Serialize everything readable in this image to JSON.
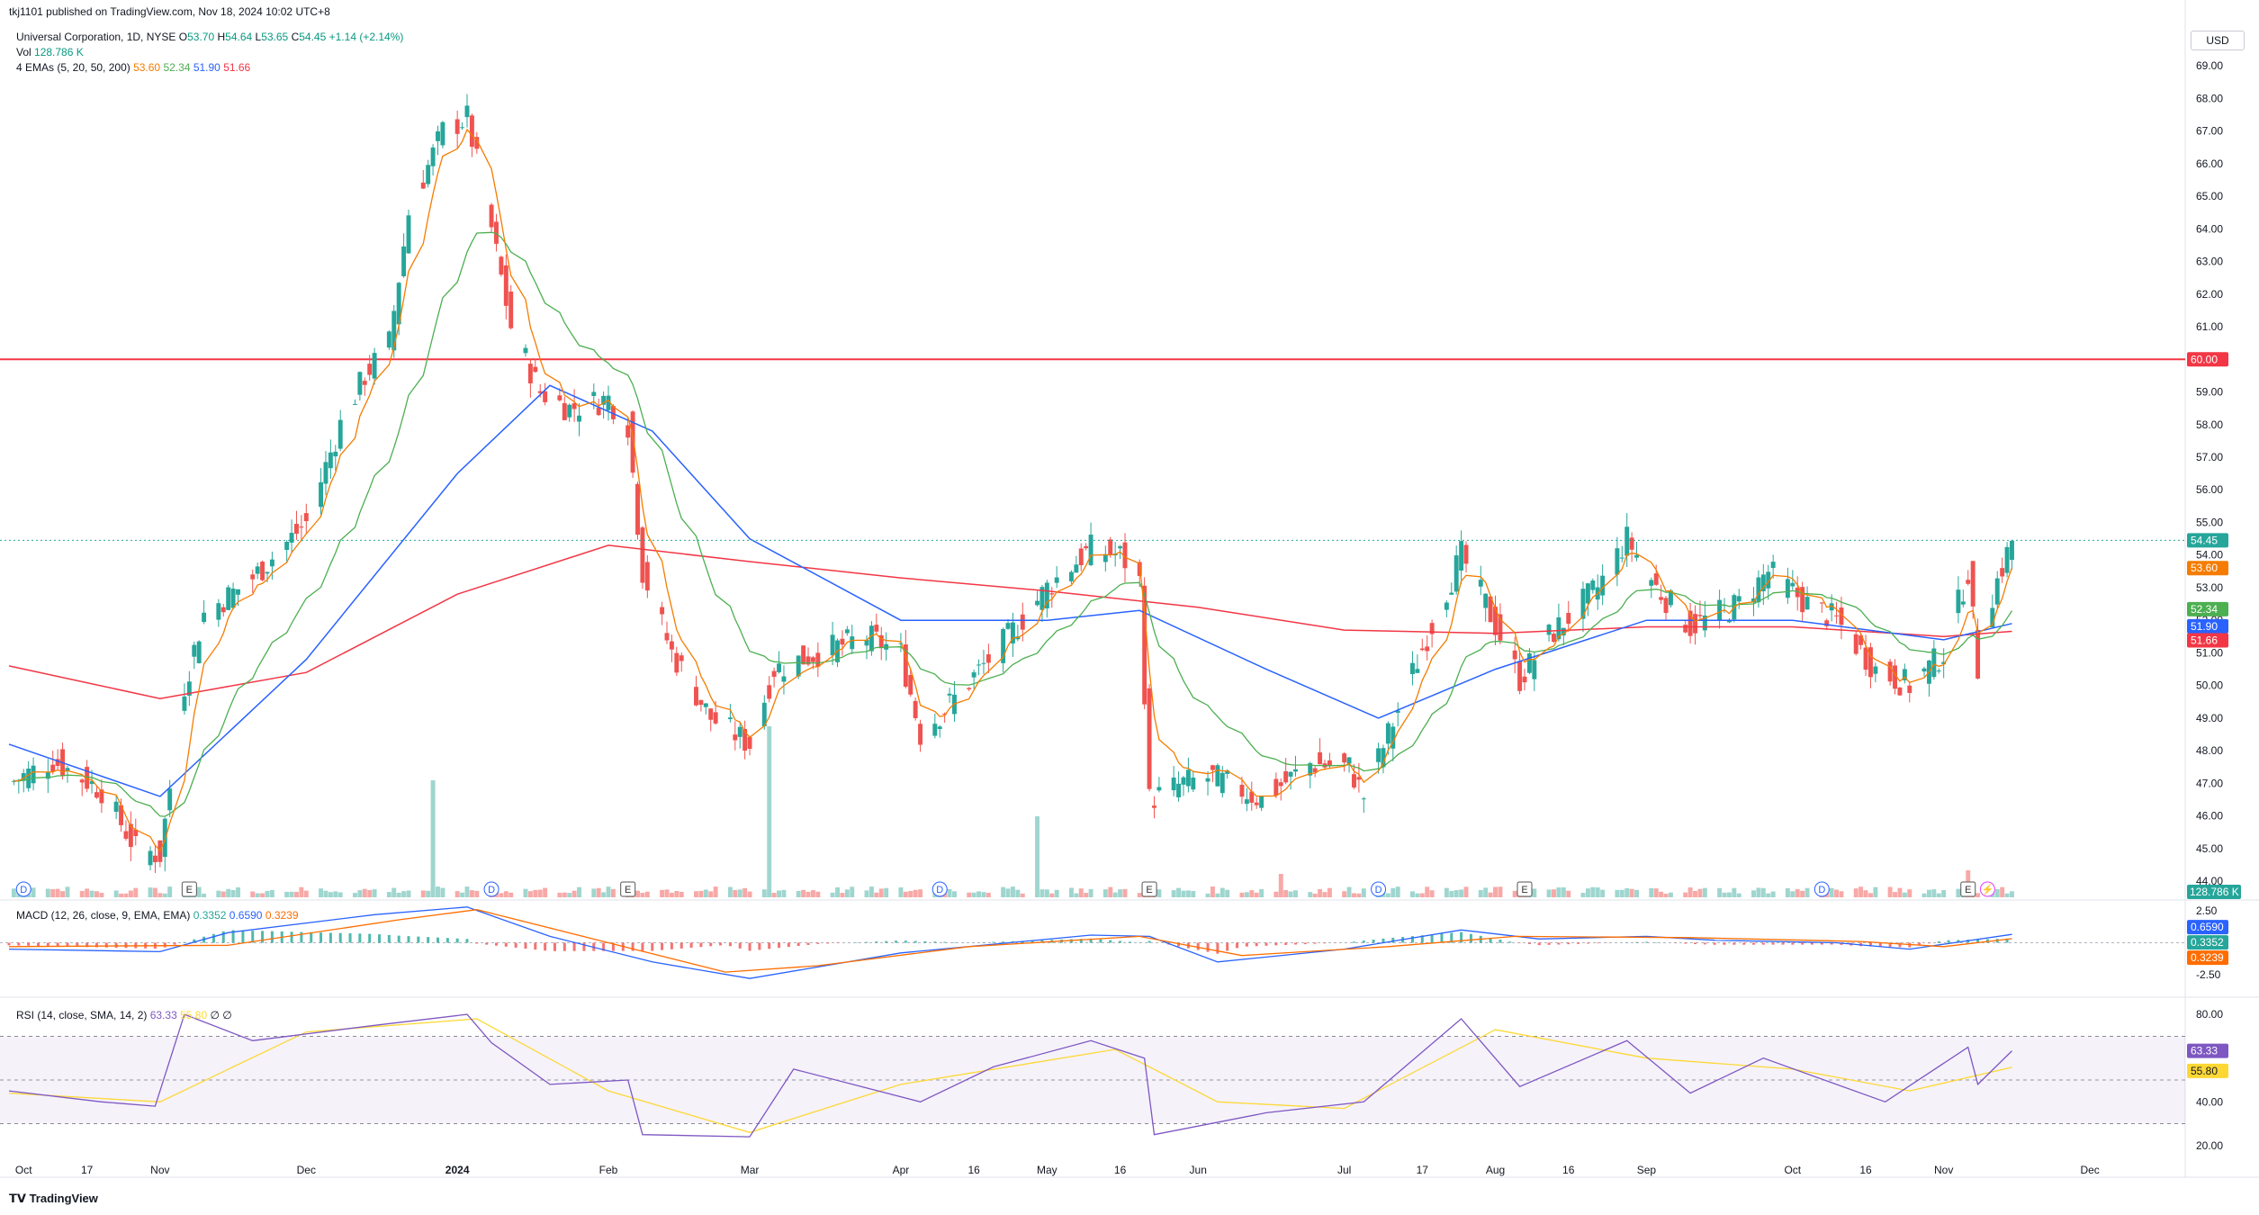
{
  "header": {
    "published": "tkj1101 published on TradingView.com, Nov 18, 2024 10:02 UTC+8",
    "symbol": "Universal Corporation, 1D, NYSE",
    "o_label": "O",
    "o_value": "53.70",
    "h_label": "H",
    "h_value": "54.64",
    "l_label": "L",
    "l_value": "53.65",
    "c_label": "C",
    "c_value": "54.45",
    "change": "+1.14 (+2.14%)",
    "vol_label": "Vol",
    "vol_value": "128.786 K",
    "ema_label": "4 EMAs (5, 20, 50, 200)",
    "ema5": "53.60",
    "ema20": "52.34",
    "ema50": "51.90",
    "ema200": "51.66"
  },
  "currency": "USD",
  "footer": {
    "brand": "TradingView"
  },
  "colors": {
    "up": "#26a69a",
    "down": "#ef5350",
    "ema5": "#f57c00",
    "ema20": "#4caf50",
    "ema50": "#2962ff",
    "ema200": "#f23645",
    "level": "#f23645",
    "macd": "#2962ff",
    "signal": "#ff6d00",
    "rsi": "#7e57c2",
    "rsi_ma": "#fdd835"
  },
  "chart_data": {
    "type": "candlestick",
    "price_axis": {
      "ticks": [
        "69.00",
        "68.00",
        "67.00",
        "66.00",
        "65.00",
        "64.00",
        "63.00",
        "62.00",
        "61.00",
        "60.00",
        "59.00",
        "58.00",
        "57.00",
        "56.00",
        "55.00",
        "54.00",
        "53.00",
        "52.00",
        "51.00",
        "50.00",
        "49.00",
        "48.00",
        "47.00",
        "46.00",
        "45.00",
        "44.00"
      ],
      "range": [
        43.7,
        69.5
      ]
    },
    "time_axis": [
      "Oct",
      "17",
      "Nov",
      "Dec",
      "2024",
      "Feb",
      "Mar",
      "Apr",
      "16",
      "May",
      "16",
      "Jun",
      "Jul",
      "17",
      "Aug",
      "16",
      "Sep",
      "Oct",
      "16",
      "Nov",
      "Dec"
    ],
    "horizontal_level": {
      "value": 60.0,
      "label": "60.00"
    },
    "last_price_label": "54.45",
    "ema_labels": {
      "ema5": "53.60",
      "ema20": "52.34",
      "ema50": "51.90",
      "ema200": "51.66"
    },
    "volume_label": "128.786 K",
    "price_path": [
      [
        "2023-10-01",
        47.0
      ],
      [
        "2023-10-10",
        47.7
      ],
      [
        "2023-10-20",
        46.8
      ],
      [
        "2023-10-27",
        45.0
      ],
      [
        "2023-11-01",
        44.8
      ],
      [
        "2023-11-06",
        50.0
      ],
      [
        "2023-11-10",
        52.2
      ],
      [
        "2023-11-20",
        53.3
      ],
      [
        "2023-12-01",
        55.0
      ],
      [
        "2023-12-08",
        58.0
      ],
      [
        "2023-12-13",
        59.5
      ],
      [
        "2023-12-18",
        60.5
      ],
      [
        "2023-12-22",
        64.5
      ],
      [
        "2023-12-29",
        67.0
      ],
      [
        "2024-01-03",
        67.4
      ],
      [
        "2024-01-08",
        64.0
      ],
      [
        "2024-01-12",
        61.0
      ],
      [
        "2024-01-18",
        59.0
      ],
      [
        "2024-01-24",
        58.5
      ],
      [
        "2024-02-01",
        58.8
      ],
      [
        "2024-02-05",
        58.0
      ],
      [
        "2024-02-08",
        53.5
      ],
      [
        "2024-02-14",
        51.0
      ],
      [
        "2024-02-22",
        49.0
      ],
      [
        "2024-03-01",
        48.2
      ],
      [
        "2024-03-06",
        50.5
      ],
      [
        "2024-03-15",
        51.0
      ],
      [
        "2024-03-25",
        51.5
      ],
      [
        "2024-04-01",
        51.0
      ],
      [
        "2024-04-05",
        48.5
      ],
      [
        "2024-04-12",
        49.6
      ],
      [
        "2024-04-22",
        51.3
      ],
      [
        "2024-05-01",
        53.0
      ],
      [
        "2024-05-10",
        54.2
      ],
      [
        "2024-05-16",
        54.0
      ],
      [
        "2024-05-20",
        53.2
      ],
      [
        "2024-05-22",
        46.5
      ],
      [
        "2024-05-29",
        47.0
      ],
      [
        "2024-06-04",
        47.2
      ],
      [
        "2024-06-14",
        46.5
      ],
      [
        "2024-06-24",
        47.6
      ],
      [
        "2024-07-02",
        47.5
      ],
      [
        "2024-07-05",
        46.6
      ],
      [
        "2024-07-10",
        48.5
      ],
      [
        "2024-07-18",
        51.5
      ],
      [
        "2024-07-25",
        54.0
      ],
      [
        "2024-07-30",
        52.5
      ],
      [
        "2024-08-06",
        50.2
      ],
      [
        "2024-08-12",
        51.5
      ],
      [
        "2024-08-22",
        53.0
      ],
      [
        "2024-08-28",
        54.5
      ],
      [
        "2024-09-03",
        53.0
      ],
      [
        "2024-09-10",
        51.8
      ],
      [
        "2024-09-20",
        52.5
      ],
      [
        "2024-09-26",
        53.5
      ],
      [
        "2024-10-04",
        52.5
      ],
      [
        "2024-10-10",
        52.0
      ],
      [
        "2024-10-18",
        50.5
      ],
      [
        "2024-10-25",
        50.0
      ],
      [
        "2024-11-01",
        51.0
      ],
      [
        "2024-11-06",
        53.5
      ],
      [
        "2024-11-08",
        50.5
      ],
      [
        "2024-11-11",
        52.8
      ],
      [
        "2024-11-15",
        54.45
      ]
    ],
    "ema50_path": [
      [
        "2023-10-01",
        48.2
      ],
      [
        "2023-11-01",
        46.6
      ],
      [
        "2023-12-01",
        50.8
      ],
      [
        "2024-01-01",
        56.5
      ],
      [
        "2024-01-20",
        59.2
      ],
      [
        "2024-02-10",
        57.8
      ],
      [
        "2024-03-01",
        54.5
      ],
      [
        "2024-04-01",
        52.0
      ],
      [
        "2024-05-01",
        52.0
      ],
      [
        "2024-05-20",
        52.3
      ],
      [
        "2024-06-15",
        50.5
      ],
      [
        "2024-07-08",
        49.0
      ],
      [
        "2024-08-01",
        50.5
      ],
      [
        "2024-09-01",
        52.0
      ],
      [
        "2024-10-01",
        52.0
      ],
      [
        "2024-11-01",
        51.4
      ],
      [
        "2024-11-15",
        51.9
      ]
    ],
    "ema200_path": [
      [
        "2023-10-01",
        50.6
      ],
      [
        "2023-11-01",
        49.6
      ],
      [
        "2023-12-01",
        50.4
      ],
      [
        "2024-01-01",
        52.8
      ],
      [
        "2024-02-01",
        54.3
      ],
      [
        "2024-03-01",
        53.8
      ],
      [
        "2024-04-01",
        53.3
      ],
      [
        "2024-05-01",
        52.9
      ],
      [
        "2024-06-01",
        52.4
      ],
      [
        "2024-07-01",
        51.7
      ],
      [
        "2024-08-01",
        51.6
      ],
      [
        "2024-09-01",
        51.8
      ],
      [
        "2024-10-01",
        51.8
      ],
      [
        "2024-11-01",
        51.5
      ],
      [
        "2024-11-15",
        51.66
      ]
    ],
    "earnings_markers": [
      [
        "2023-10-04",
        "D"
      ],
      [
        "2023-11-07",
        "E"
      ],
      [
        "2024-01-08",
        "D"
      ],
      [
        "2024-02-05",
        "E"
      ],
      [
        "2024-04-09",
        "D"
      ],
      [
        "2024-05-22",
        "E"
      ],
      [
        "2024-07-08",
        "D"
      ],
      [
        "2024-08-07",
        "E"
      ],
      [
        "2024-10-07",
        "D"
      ],
      [
        "2024-11-06",
        "E"
      ],
      [
        "2024-11-10",
        "⚡"
      ]
    ],
    "volume_spikes": [
      [
        "2023-12-27",
        6.5
      ],
      [
        "2024-03-05",
        9.5
      ],
      [
        "2024-04-29",
        4.5
      ],
      [
        "2024-06-18",
        1.3
      ],
      [
        "2024-11-06",
        1.5
      ]
    ],
    "macd": {
      "label": "MACD (12, 26, close, 9, EMA, EMA)",
      "values": [
        "0.3352",
        "0.6590",
        "0.3239"
      ],
      "axis_ticks": [
        "2.50",
        "-2.50"
      ],
      "macd_path": [
        [
          "2023-10-01",
          -0.5
        ],
        [
          "2023-11-01",
          -0.7
        ],
        [
          "2023-11-15",
          0.8
        ],
        [
          "2023-12-15",
          2.2
        ],
        [
          "2024-01-03",
          2.8
        ],
        [
          "2024-01-20",
          0.5
        ],
        [
          "2024-02-10",
          -1.5
        ],
        [
          "2024-03-01",
          -2.8
        ],
        [
          "2024-04-01",
          -0.8
        ],
        [
          "2024-05-10",
          0.6
        ],
        [
          "2024-05-22",
          0.5
        ],
        [
          "2024-06-05",
          -1.5
        ],
        [
          "2024-07-01",
          -0.5
        ],
        [
          "2024-07-25",
          1.0
        ],
        [
          "2024-08-10",
          0.3
        ],
        [
          "2024-09-01",
          0.5
        ],
        [
          "2024-09-15",
          0.2
        ],
        [
          "2024-10-10",
          0.0
        ],
        [
          "2024-10-25",
          -0.5
        ],
        [
          "2024-11-15",
          0.66
        ]
      ],
      "signal_path": [
        [
          "2023-10-01",
          -0.3
        ],
        [
          "2023-11-15",
          -0.2
        ],
        [
          "2023-12-20",
          1.8
        ],
        [
          "2024-01-05",
          2.6
        ],
        [
          "2024-02-01",
          0.0
        ],
        [
          "2024-02-25",
          -2.3
        ],
        [
          "2024-03-15",
          -1.8
        ],
        [
          "2024-04-15",
          -0.3
        ],
        [
          "2024-05-20",
          0.5
        ],
        [
          "2024-06-10",
          -1.0
        ],
        [
          "2024-07-10",
          -0.3
        ],
        [
          "2024-08-05",
          0.5
        ],
        [
          "2024-09-10",
          0.4
        ],
        [
          "2024-10-15",
          0.1
        ],
        [
          "2024-11-01",
          -0.3
        ],
        [
          "2024-11-15",
          0.32
        ]
      ]
    },
    "rsi": {
      "label": "RSI (14, close, SMA, 14, 2)",
      "values": [
        "63.33",
        "55.80"
      ],
      "extra": "∅ ∅",
      "axis_ticks": [
        "80.00",
        "40.00",
        "20.00"
      ],
      "band": [
        30,
        70
      ],
      "rsi_path": [
        [
          "2023-10-01",
          45
        ],
        [
          "2023-10-20",
          40
        ],
        [
          "2023-10-31",
          38
        ],
        [
          "2023-11-06",
          80
        ],
        [
          "2023-11-20",
          68
        ],
        [
          "2023-12-15",
          75
        ],
        [
          "2024-01-03",
          80
        ],
        [
          "2024-01-08",
          67
        ],
        [
          "2024-01-20",
          48
        ],
        [
          "2024-02-05",
          50
        ],
        [
          "2024-02-08",
          25
        ],
        [
          "2024-03-01",
          24
        ],
        [
          "2024-03-10",
          55
        ],
        [
          "2024-04-05",
          40
        ],
        [
          "2024-04-20",
          56
        ],
        [
          "2024-05-10",
          68
        ],
        [
          "2024-05-21",
          60
        ],
        [
          "2024-05-23",
          25
        ],
        [
          "2024-06-15",
          35
        ],
        [
          "2024-07-05",
          40
        ],
        [
          "2024-07-25",
          78
        ],
        [
          "2024-08-06",
          47
        ],
        [
          "2024-08-28",
          68
        ],
        [
          "2024-09-10",
          44
        ],
        [
          "2024-09-25",
          60
        ],
        [
          "2024-10-20",
          40
        ],
        [
          "2024-11-06",
          65
        ],
        [
          "2024-11-08",
          48
        ],
        [
          "2024-11-15",
          63.33
        ]
      ],
      "rsi_ma_path": [
        [
          "2023-10-01",
          44
        ],
        [
          "2023-11-01",
          40
        ],
        [
          "2023-12-01",
          72
        ],
        [
          "2024-01-05",
          78
        ],
        [
          "2024-02-01",
          45
        ],
        [
          "2024-03-01",
          26
        ],
        [
          "2024-04-01",
          48
        ],
        [
          "2024-05-15",
          64
        ],
        [
          "2024-06-05",
          40
        ],
        [
          "2024-07-01",
          37
        ],
        [
          "2024-08-01",
          73
        ],
        [
          "2024-09-01",
          60
        ],
        [
          "2024-10-01",
          55
        ],
        [
          "2024-10-25",
          45
        ],
        [
          "2024-11-15",
          55.8
        ]
      ]
    }
  }
}
